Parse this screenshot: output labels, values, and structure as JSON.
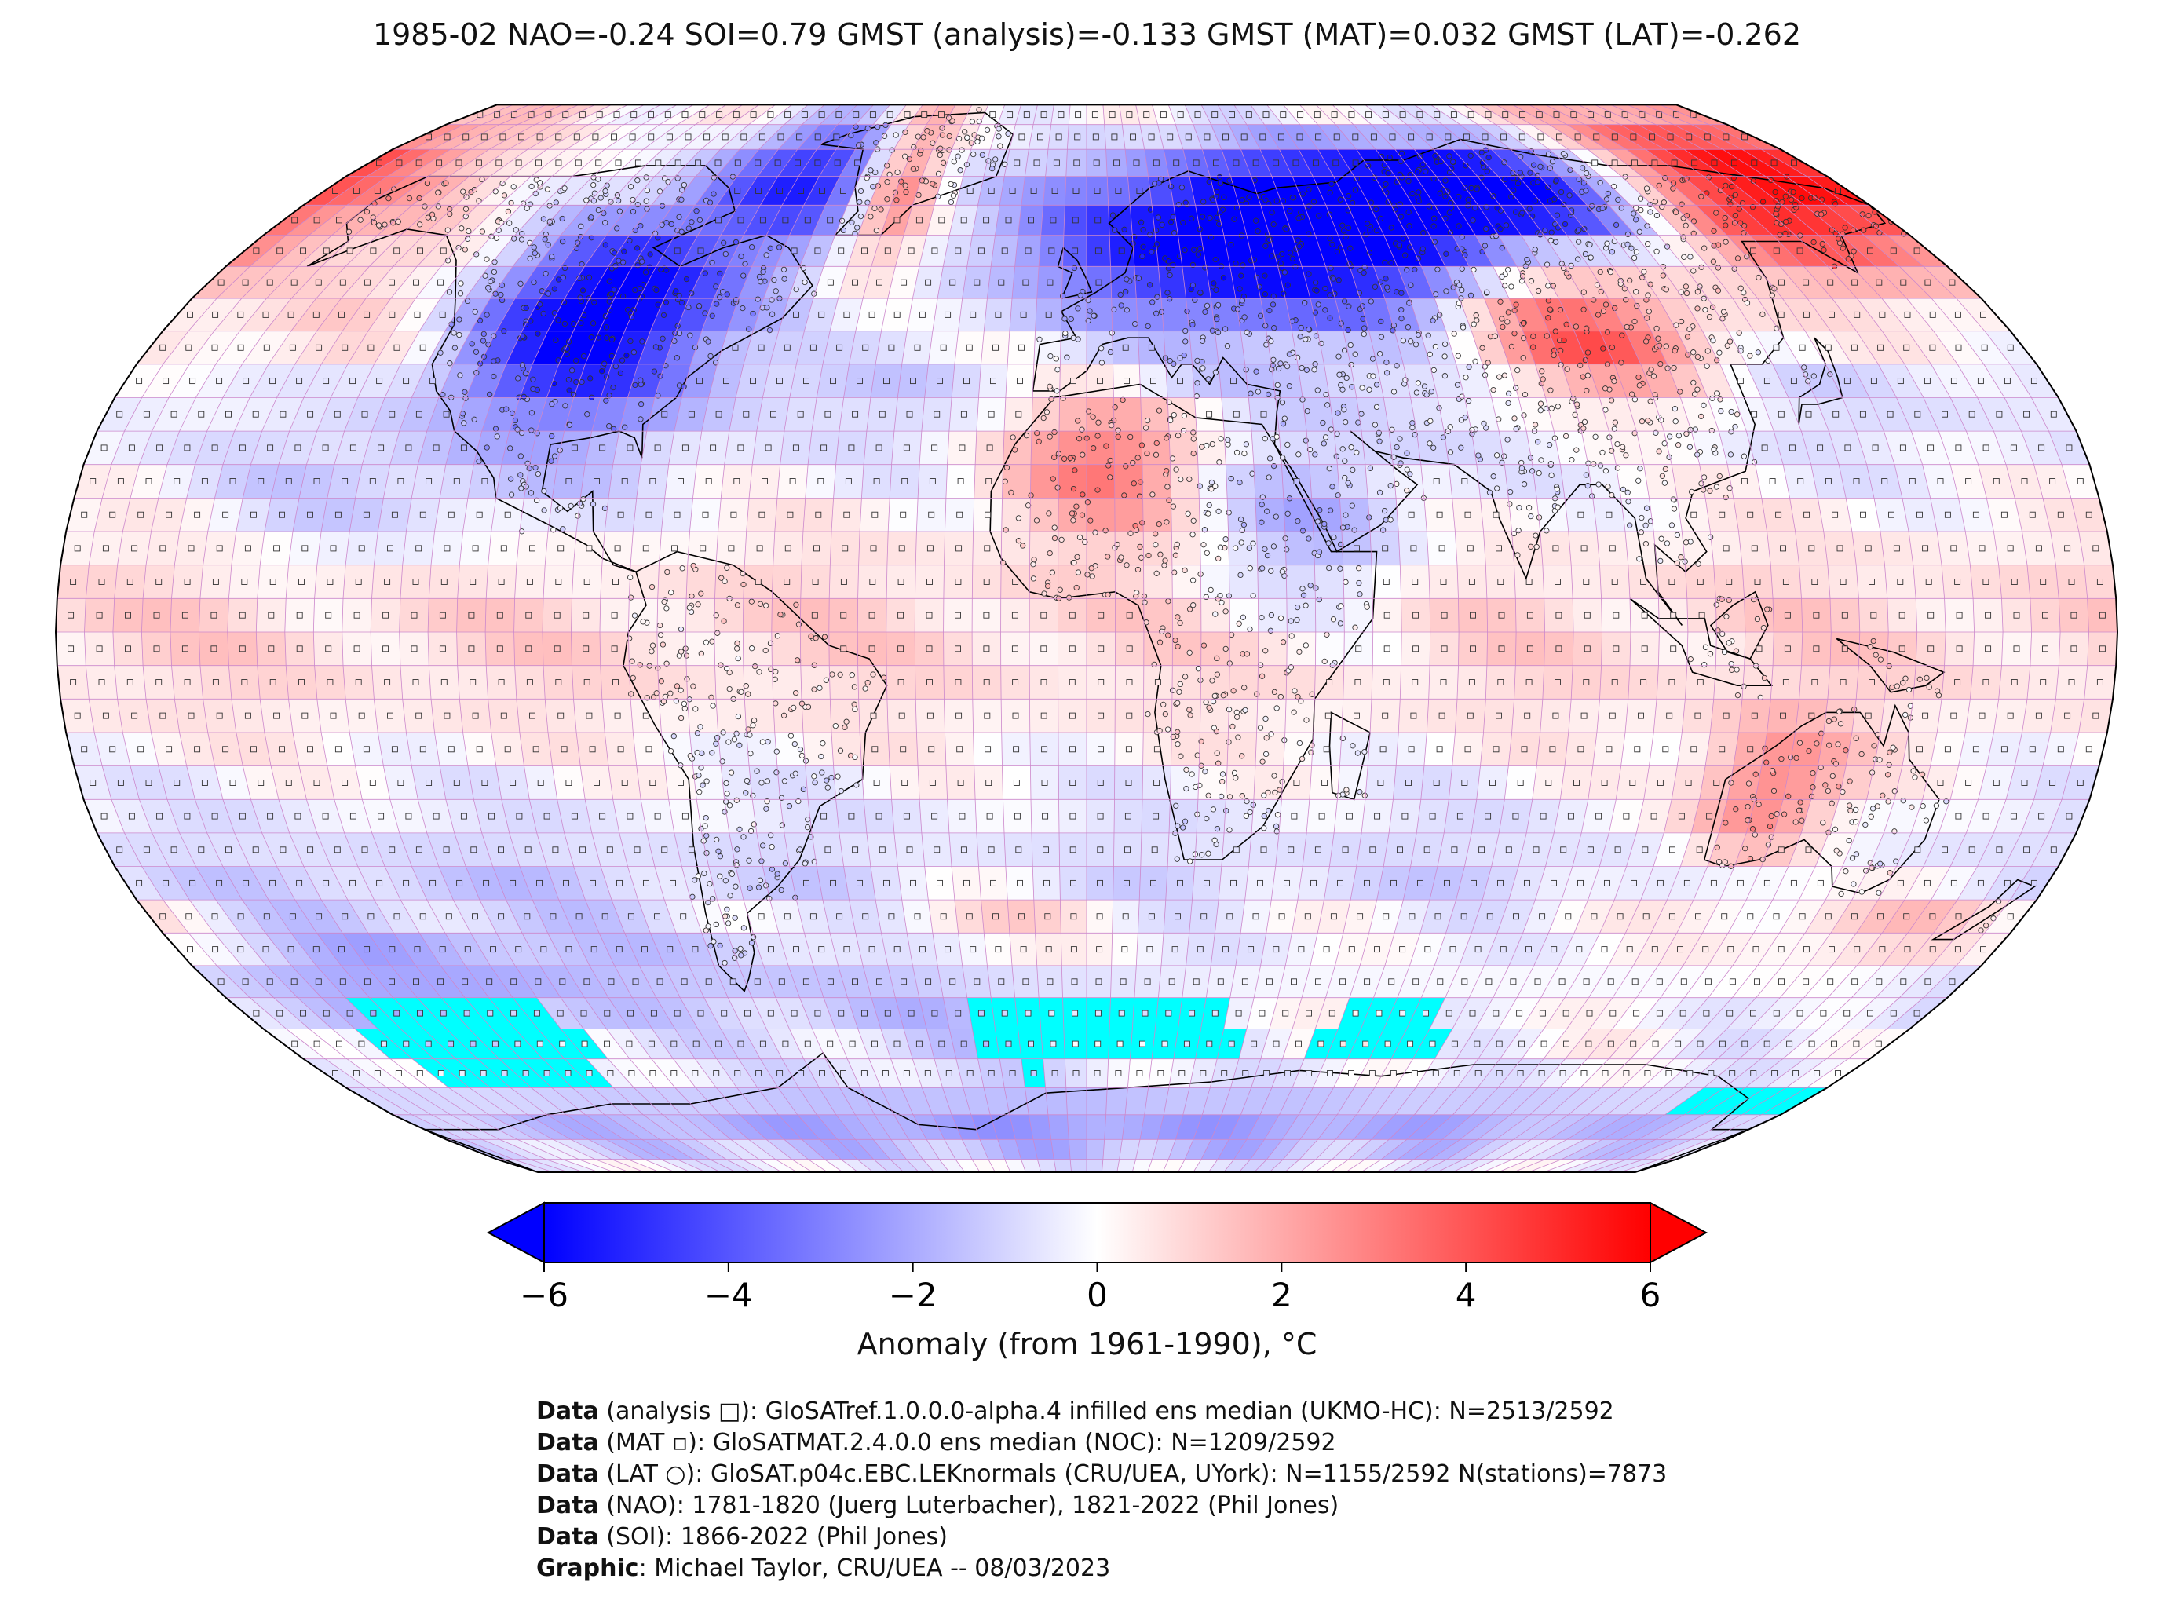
{
  "title": "1985-02 NAO=-0.24 SOI=0.79 GMST (analysis)=-0.133 GMST (MAT)=0.032 GMST (LAT)=-0.262",
  "colorbar": {
    "label": "Anomaly (from 1961-1990), °C",
    "ticks": [
      "−6",
      "−4",
      "−2",
      "0",
      "2",
      "4",
      "6"
    ],
    "tick_values": [
      -6,
      -4,
      -2,
      0,
      2,
      4,
      6
    ],
    "min": -6,
    "max": 6,
    "extend": "both",
    "colormap": "bwr",
    "colors": {
      "negative": "#0000ff",
      "zero": "#ffffff",
      "positive": "#ff0000",
      "missing_fill": "#00ffff"
    }
  },
  "map": {
    "projection": "Robinson",
    "grid_resolution_deg": 5,
    "grid_line_color": "#cc88cc",
    "coastline_color": "#000000"
  },
  "credits": [
    {
      "label": "Data",
      "text": " (analysis □): GloSATref.1.0.0.0-alpha.4 infilled ens median (UKMO-HC): N=2513/2592"
    },
    {
      "label": "Data",
      "text": " (MAT ▫): GloSATMAT.2.4.0.0 ens median (NOC): N=1209/2592"
    },
    {
      "label": "Data",
      "text": " (LAT ○): GloSAT.p04c.EBC.LEKnormals (CRU/UEA, UYork): N=1155/2592 N(stations)=7873"
    },
    {
      "label": "Data",
      "text": " (NAO): 1781-1820 (Juerg Luterbacher), 1821-2022 (Phil Jones)"
    },
    {
      "label": "Data",
      "text": " (SOI): 1866-2022 (Phil Jones)"
    },
    {
      "label": "Graphic",
      "text": ": Michael Taylor, CRU/UEA -- 08/03/2023"
    }
  ],
  "anomaly_regions": [
    {
      "region": "North America interior",
      "value": -4.5
    },
    {
      "region": "Baffin Bay / Labrador Sea",
      "value": -5.0
    },
    {
      "region": "Greenland",
      "value": 2.0
    },
    {
      "region": "Europe and western Russia",
      "value": -6.0
    },
    {
      "region": "Siberia and Arctic Russia",
      "value": -5.5
    },
    {
      "region": "Far East Siberia",
      "value": 5.0
    },
    {
      "region": "Central Asia / Mongolia",
      "value": 3.5
    },
    {
      "region": "North Africa",
      "value": 2.5
    },
    {
      "region": "East Africa / Arabia",
      "value": -1.5
    },
    {
      "region": "Western Australia",
      "value": 3.0
    },
    {
      "region": "Southern Ocean (Pacific sector)",
      "value": -2.0
    },
    {
      "region": "Antarctica",
      "value": -2.0
    },
    {
      "region": "Tropical Pacific",
      "value": 1.0
    }
  ]
}
